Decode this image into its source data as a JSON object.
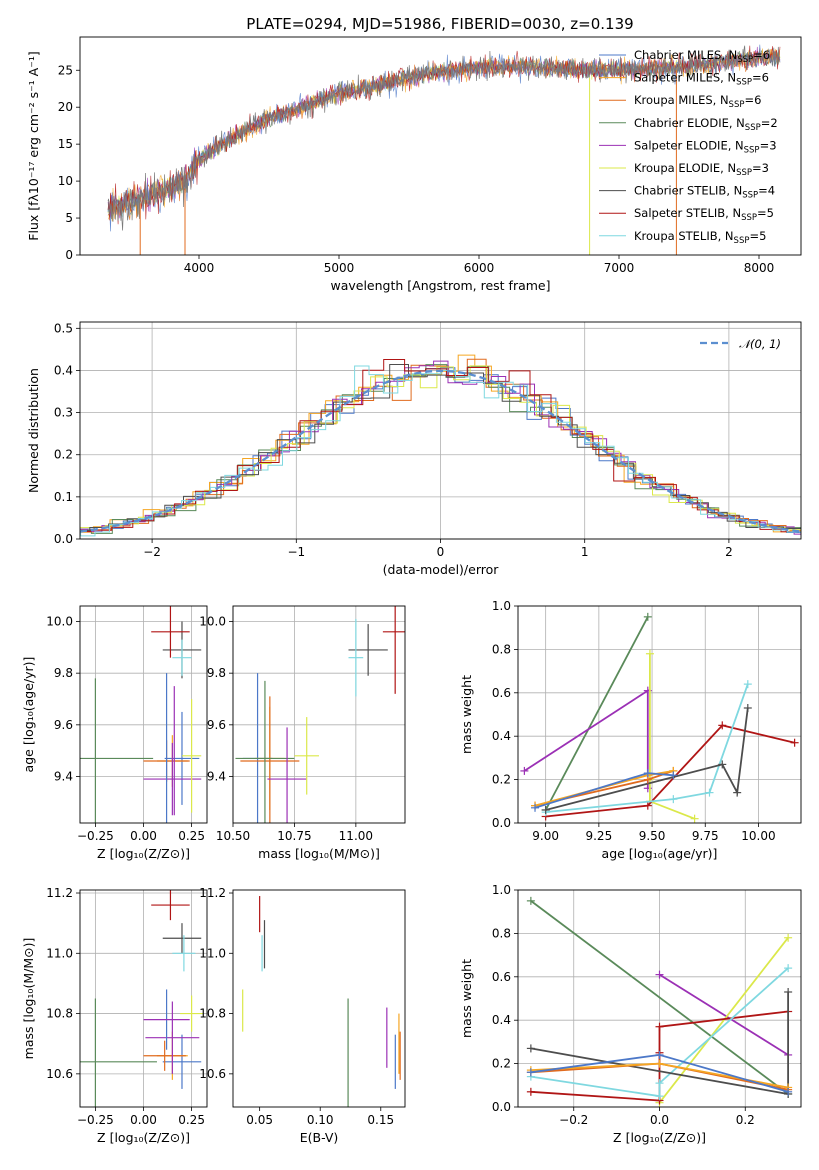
{
  "figure_title": "PLATE=0294, MJD=51986, FIBERID=0030, z=0.139",
  "colors": {
    "Chabrier MILES": "#4c78c8",
    "Salpeter MILES": "#f5a623",
    "Kroupa MILES": "#e06b1f",
    "Chabrier ELODIE": "#5a8a5a",
    "Salpeter ELODIE": "#9b30b5",
    "Kroupa ELODIE": "#dbe84a",
    "Chabrier STELIB": "#4d4d4d",
    "Salpeter STELIB": "#b01515",
    "Kroupa STELIB": "#7fd8e0",
    "normal": "#5b8fd0"
  },
  "chart_data": [
    {
      "id": "spectrum",
      "type": "line",
      "title": "PLATE=0294, MJD=51986, FIBERID=0030, z=0.139",
      "xlabel": "wavelength [Angstrom, rest frame]",
      "ylabel": "Flux [fλ10⁻¹⁷ erg cm⁻² s⁻¹ A⁻¹]",
      "xlim": [
        3150,
        8300
      ],
      "ylim": [
        0,
        29.5
      ],
      "xticks": [
        "4000",
        "5000",
        "6000",
        "7000",
        "8000"
      ],
      "yticks": [
        "0",
        "5",
        "10",
        "15",
        "20",
        "25"
      ],
      "continuum": [
        [
          3350,
          6.3
        ],
        [
          3500,
          7.0
        ],
        [
          3700,
          8.5
        ],
        [
          3900,
          9.8
        ],
        [
          4000,
          13.0
        ],
        [
          4200,
          15.5
        ],
        [
          4500,
          18.5
        ],
        [
          4800,
          20.5
        ],
        [
          5000,
          22.0
        ],
        [
          5300,
          23.0
        ],
        [
          5600,
          24.5
        ],
        [
          6000,
          25.5
        ],
        [
          6300,
          25.6
        ],
        [
          6600,
          25.2
        ],
        [
          7000,
          25.0
        ],
        [
          7500,
          25.5
        ],
        [
          7800,
          26.3
        ],
        [
          8100,
          26.8
        ]
      ],
      "legend_position": "upper right",
      "legend": [
        {
          "text": "Chabrier MILES, N",
          "sub": "SSP",
          "tail": "=6",
          "color": "#4c78c8"
        },
        {
          "text": "Salpeter MILES, N",
          "sub": "SSP",
          "tail": "=6",
          "color": "#f5a623"
        },
        {
          "text": "Kroupa MILES, N",
          "sub": "SSP",
          "tail": "=6",
          "color": "#e06b1f"
        },
        {
          "text": "Chabrier ELODIE, N",
          "sub": "SSP",
          "tail": "=2",
          "color": "#5a8a5a"
        },
        {
          "text": "Salpeter ELODIE, N",
          "sub": "SSP",
          "tail": "=3",
          "color": "#9b30b5"
        },
        {
          "text": "Kroupa ELODIE, N",
          "sub": "SSP",
          "tail": "=3",
          "color": "#dbe84a"
        },
        {
          "text": "Chabrier STELIB, N",
          "sub": "SSP",
          "tail": "=4",
          "color": "#4d4d4d"
        },
        {
          "text": "Salpeter STELIB, N",
          "sub": "SSP",
          "tail": "=5",
          "color": "#b01515"
        },
        {
          "text": "Kroupa STELIB, N",
          "sub": "SSP",
          "tail": "=5",
          "color": "#7fd8e0"
        }
      ]
    },
    {
      "id": "histogram",
      "type": "bar",
      "xlabel": "(data-model)/error",
      "ylabel": "Normed distribution",
      "xlim": [
        -2.5,
        2.5
      ],
      "ylim": [
        0,
        0.515
      ],
      "xticks": [
        "−2",
        "−1",
        "0",
        "1",
        "2"
      ],
      "yticks": [
        "0.0",
        "0.1",
        "0.2",
        "0.3",
        "0.4",
        "0.5"
      ],
      "grid": true,
      "legend_position": "upper right",
      "legend": [
        {
          "text": "𝒩(0, 1)",
          "color": "#5b8fd0"
        }
      ]
    },
    {
      "id": "z-age",
      "type": "scatter",
      "xlabel": "Z [log₁₀(Z/Z⊙)]",
      "ylabel": "age  [log₁₀(age/yr)]",
      "xlim": [
        -0.33,
        0.33
      ],
      "ylim": [
        9.22,
        10.06
      ],
      "xticks": [
        "−0.25",
        "0.00",
        "0.25"
      ],
      "yticks": [
        "9.4",
        "9.6",
        "9.8",
        "10.0"
      ],
      "grid": true,
      "points": [
        {
          "model": "Chabrier MILES",
          "x": 0.2,
          "y": 9.47,
          "xerr": 0.09,
          "yerr": 0.18
        },
        {
          "model": "Salpeter MILES",
          "x": 0.15,
          "y": 9.46,
          "xerr": 0.08,
          "yerr": 0.1
        },
        {
          "model": "Kroupa MILES",
          "x": 0.12,
          "y": 9.46,
          "xerr": 0.12,
          "yerr": 0.08
        },
        {
          "model": "Chabrier ELODIE",
          "x": -0.25,
          "y": 9.47,
          "xerr": 0.3,
          "yerr": 0.31
        },
        {
          "model": "Salpeter ELODIE",
          "x": 0.15,
          "y": 9.39,
          "xerr": 0.15,
          "yerr": 0.14
        },
        {
          "model": "Kroupa ELODIE",
          "x": 0.25,
          "y": 9.48,
          "xerr": 0.05,
          "yerr": 0.22
        },
        {
          "model": "Chabrier STELIB",
          "x": 0.2,
          "y": 9.89,
          "xerr": 0.1,
          "yerr": 0.11
        },
        {
          "model": "Salpeter STELIB",
          "x": 0.14,
          "y": 9.96,
          "xerr": 0.1,
          "yerr": 0.1
        },
        {
          "model": "Kroupa STELIB",
          "x": 0.2,
          "y": 9.86,
          "xerr": 0.05,
          "yerr": 0.07
        },
        {
          "model": "Chabrier MILES",
          "x": 0.12,
          "y": 9.5,
          "xerr": 0.0,
          "yerr": 0.3
        },
        {
          "model": "Salpeter ELODIE",
          "x": 0.16,
          "y": 9.5,
          "xerr": 0.0,
          "yerr": 0.25
        }
      ]
    },
    {
      "id": "mass-age",
      "type": "scatter",
      "xlabel": "mass [log₁₀(M/M⊙)]",
      "xlim": [
        10.5,
        11.2
      ],
      "ylim": [
        9.22,
        10.06
      ],
      "xticks": [
        "10.50",
        "10.75",
        "11.00"
      ],
      "yticks": [
        "9.4",
        "9.6",
        "9.8",
        "10.0"
      ],
      "grid": true,
      "points": [
        {
          "model": "Chabrier MILES",
          "x": 10.6,
          "y": 9.47,
          "xerr": 0.06,
          "yerr": 0.33
        },
        {
          "model": "Salpeter MILES",
          "x": 10.65,
          "y": 9.47,
          "xerr": 0.06,
          "yerr": 0.2
        },
        {
          "model": "Kroupa MILES",
          "x": 10.65,
          "y": 9.46,
          "xerr": 0.12,
          "yerr": 0.25
        },
        {
          "model": "Chabrier ELODIE",
          "x": 10.63,
          "y": 9.47,
          "xerr": 0.12,
          "yerr": 0.3
        },
        {
          "model": "Salpeter ELODIE",
          "x": 10.72,
          "y": 9.39,
          "xerr": 0.08,
          "yerr": 0.2
        },
        {
          "model": "Kroupa ELODIE",
          "x": 10.8,
          "y": 9.48,
          "xerr": 0.05,
          "yerr": 0.15
        },
        {
          "model": "Chabrier STELIB",
          "x": 11.05,
          "y": 9.89,
          "xerr": 0.08,
          "yerr": 0.1
        },
        {
          "model": "Salpeter STELIB",
          "x": 11.16,
          "y": 9.96,
          "xerr": 0.05,
          "yerr": 0.24
        },
        {
          "model": "Kroupa STELIB",
          "x": 11.0,
          "y": 9.86,
          "xerr": 0.03,
          "yerr": 0.15
        }
      ]
    },
    {
      "id": "age-weight",
      "type": "line",
      "xlabel": "age  [log₁₀(age/yr)]",
      "ylabel": "mass weight",
      "xlim": [
        8.87,
        10.2
      ],
      "ylim": [
        0,
        1.0
      ],
      "xticks": [
        "9.00",
        "9.25",
        "9.50",
        "9.75",
        "10.00"
      ],
      "yticks": [
        "0.0",
        "0.2",
        "0.4",
        "0.6",
        "0.8",
        "1.0"
      ],
      "grid": true,
      "series": [
        {
          "model": "Chabrier ELODIE",
          "x": [
            9.0,
            9.48
          ],
          "y": [
            0.06,
            0.95
          ]
        },
        {
          "model": "Salpeter ELODIE",
          "x": [
            8.9,
            9.48,
            9.48
          ],
          "y": [
            0.24,
            0.61,
            0.16
          ]
        },
        {
          "model": "Kroupa ELODIE",
          "x": [
            9.49,
            9.49,
            9.49,
            9.7
          ],
          "y": [
            0.78,
            0.2,
            0.1,
            0.02
          ]
        },
        {
          "model": "Salpeter STELIB",
          "x": [
            9.0,
            9.48,
            9.83,
            10.17
          ],
          "y": [
            0.03,
            0.08,
            0.45,
            0.37
          ]
        },
        {
          "model": "Kroupa STELIB",
          "x": [
            9.0,
            9.6,
            9.77,
            9.95
          ],
          "y": [
            0.05,
            0.11,
            0.14,
            0.64
          ]
        },
        {
          "model": "Chabrier STELIB",
          "x": [
            9.0,
            9.83,
            9.9,
            9.95
          ],
          "y": [
            0.06,
            0.27,
            0.14,
            0.53
          ]
        },
        {
          "model": "Kroupa MILES",
          "x": [
            8.95,
            9.48,
            9.6
          ],
          "y": [
            0.08,
            0.2,
            0.24
          ]
        },
        {
          "model": "Salpeter MILES",
          "x": [
            8.95,
            9.48,
            9.6
          ],
          "y": [
            0.08,
            0.22,
            0.24
          ]
        },
        {
          "model": "Chabrier MILES",
          "x": [
            8.95,
            9.48,
            9.6
          ],
          "y": [
            0.07,
            0.23,
            0.22
          ]
        }
      ]
    },
    {
      "id": "z-mass",
      "type": "scatter",
      "xlabel": "Z [log₁₀(Z/Z⊙)]",
      "ylabel": "mass [log₁₀(M/M⊙)]",
      "xlim": [
        -0.33,
        0.33
      ],
      "ylim": [
        10.49,
        11.21
      ],
      "xticks": [
        "−0.25",
        "0.00",
        "0.25"
      ],
      "yticks": [
        "10.6",
        "10.8",
        "11.0",
        "11.2"
      ],
      "grid": true,
      "points": [
        {
          "model": "Chabrier MILES",
          "x": 0.2,
          "y": 10.64,
          "xerr": 0.1,
          "yerr": 0.09
        },
        {
          "model": "Salpeter MILES",
          "x": 0.15,
          "y": 10.66,
          "xerr": 0.08,
          "yerr": 0.08
        },
        {
          "model": "Kroupa MILES",
          "x": 0.11,
          "y": 10.66,
          "xerr": 0.11,
          "yerr": 0.05
        },
        {
          "model": "Chabrier ELODIE",
          "x": -0.25,
          "y": 10.64,
          "xerr": 0.32,
          "yerr": 0.21
        },
        {
          "model": "Salpeter ELODIE",
          "x": 0.15,
          "y": 10.72,
          "xerr": 0.14,
          "yerr": 0.12
        },
        {
          "model": "Kroupa ELODIE",
          "x": 0.25,
          "y": 10.8,
          "xerr": 0.06,
          "yerr": 0.06
        },
        {
          "model": "Chabrier STELIB",
          "x": 0.2,
          "y": 11.05,
          "xerr": 0.1,
          "yerr": 0.05
        },
        {
          "model": "Salpeter STELIB",
          "x": 0.14,
          "y": 11.16,
          "xerr": 0.1,
          "yerr": 0.05
        },
        {
          "model": "Kroupa STELIB",
          "x": 0.21,
          "y": 11.0,
          "xerr": 0.06,
          "yerr": 0.06
        },
        {
          "model": "Chabrier MILES",
          "x": 0.12,
          "y": 10.78,
          "xerr": 0.0,
          "yerr": 0.1
        },
        {
          "model": "Salpeter ELODIE",
          "x": 0.12,
          "y": 10.78,
          "xerr": 0.12,
          "yerr": 0.0
        }
      ]
    },
    {
      "id": "ebv-mass",
      "type": "scatter",
      "xlabel": "E(B-V)",
      "xlim": [
        0.028,
        0.17
      ],
      "ylim": [
        10.49,
        11.21
      ],
      "xticks": [
        "0.05",
        "0.10",
        "0.15"
      ],
      "yticks": [
        "10.6",
        "10.8",
        "11.0",
        "11.2"
      ],
      "grid": false,
      "points": [
        {
          "model": "Kroupa ELODIE",
          "x": 0.036,
          "y": 10.81,
          "xerr": 0.0,
          "yerr": 0.07
        },
        {
          "model": "Salpeter STELIB",
          "x": 0.05,
          "y": 11.13,
          "xerr": 0.0,
          "yerr": 0.06
        },
        {
          "model": "Chabrier STELIB",
          "x": 0.054,
          "y": 11.03,
          "xerr": 0.0,
          "yerr": 0.08
        },
        {
          "model": "Kroupa STELIB",
          "x": 0.052,
          "y": 11.0,
          "xerr": 0.0,
          "yerr": 0.06
        },
        {
          "model": "Chabrier ELODIE",
          "x": 0.123,
          "y": 10.64,
          "xerr": 0.0,
          "yerr": 0.21
        },
        {
          "model": "Salpeter ELODIE",
          "x": 0.155,
          "y": 10.72,
          "xerr": 0.0,
          "yerr": 0.1
        },
        {
          "model": "Kroupa MILES",
          "x": 0.166,
          "y": 10.66,
          "xerr": 0.0,
          "yerr": 0.08
        },
        {
          "model": "Salpeter MILES",
          "x": 0.165,
          "y": 10.7,
          "xerr": 0.0,
          "yerr": 0.1
        },
        {
          "model": "Chabrier MILES",
          "x": 0.162,
          "y": 10.64,
          "xerr": 0.0,
          "yerr": 0.09
        }
      ]
    },
    {
      "id": "z-weight",
      "type": "line",
      "xlabel": "Z [log₁₀(Z/Z⊙)]",
      "ylabel": "mass weight",
      "xlim": [
        -0.33,
        0.33
      ],
      "ylim": [
        0,
        1.0
      ],
      "xticks": [
        "−0.2",
        "0.0",
        "0.2"
      ],
      "yticks": [
        "0.0",
        "0.2",
        "0.4",
        "0.6",
        "0.8",
        "1.0"
      ],
      "grid": true,
      "series": [
        {
          "model": "Chabrier ELODIE",
          "x": [
            -0.3,
            0.3
          ],
          "y": [
            0.95,
            0.06
          ]
        },
        {
          "model": "Salpeter ELODIE",
          "x": [
            0.0,
            0.3
          ],
          "y": [
            0.61,
            0.24
          ]
        },
        {
          "model": "Kroupa ELODIE",
          "x": [
            0.0,
            0.3
          ],
          "y": [
            0.02,
            0.78
          ]
        },
        {
          "model": "Salpeter STELIB",
          "x": [
            -0.3,
            0.0,
            0.0,
            0.0,
            0.3
          ],
          "y": [
            0.07,
            0.03,
            0.25,
            0.37,
            0.44
          ]
        },
        {
          "model": "Kroupa STELIB",
          "x": [
            -0.3,
            0.0,
            0.0,
            0.3
          ],
          "y": [
            0.14,
            0.05,
            0.11,
            0.64
          ]
        },
        {
          "model": "Chabrier STELIB",
          "x": [
            -0.3,
            0.3,
            0.3
          ],
          "y": [
            0.27,
            0.06,
            0.53
          ]
        },
        {
          "model": "Kroupa MILES",
          "x": [
            -0.3,
            0.0,
            0.3
          ],
          "y": [
            0.16,
            0.2,
            0.08
          ]
        },
        {
          "model": "Salpeter MILES",
          "x": [
            -0.3,
            0.0,
            0.3
          ],
          "y": [
            0.17,
            0.2,
            0.09
          ]
        },
        {
          "model": "Chabrier MILES",
          "x": [
            -0.3,
            0.0,
            0.3
          ],
          "y": [
            0.16,
            0.24,
            0.07
          ]
        }
      ]
    }
  ]
}
